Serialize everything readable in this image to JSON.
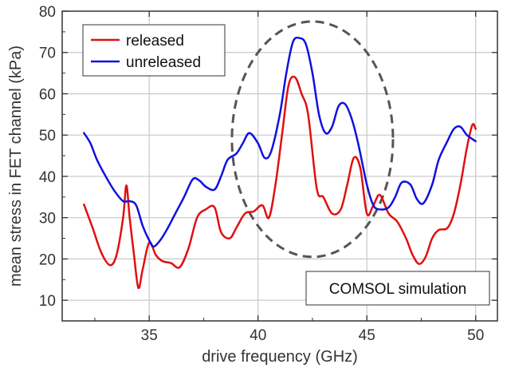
{
  "chart_data": {
    "type": "line",
    "xlabel": "drive frequency (GHz)",
    "ylabel": "mean stress in FET channel (kPa)",
    "xlim": [
      31,
      51
    ],
    "ylim": [
      5,
      80
    ],
    "xticks": [
      35,
      40,
      45,
      50
    ],
    "yticks": [
      10,
      20,
      30,
      40,
      50,
      60,
      70,
      80
    ],
    "grid": true,
    "legend_position": "top-left",
    "annotation": "COMSOL simulation",
    "series": [
      {
        "name": "released",
        "color": "#e01010",
        "x": [
          32.0,
          32.4,
          32.8,
          33.2,
          33.5,
          33.8,
          33.95,
          34.1,
          34.3,
          34.5,
          34.7,
          35.0,
          35.3,
          35.6,
          36.0,
          36.4,
          36.8,
          37.2,
          37.6,
          38.0,
          38.3,
          38.7,
          39.0,
          39.4,
          39.8,
          40.2,
          40.5,
          40.8,
          41.1,
          41.4,
          41.7,
          42.0,
          42.3,
          42.7,
          43.0,
          43.4,
          43.8,
          44.1,
          44.4,
          44.7,
          45.0,
          45.3,
          45.6,
          46.0,
          46.4,
          46.8,
          47.1,
          47.4,
          47.7,
          48.0,
          48.3,
          48.7,
          49.0,
          49.3,
          49.6,
          49.85,
          50.0
        ],
        "values": [
          33.2,
          27.5,
          21.5,
          18.5,
          21.0,
          30.0,
          37.8,
          30.0,
          21.0,
          13.0,
          17.5,
          24.0,
          21.0,
          19.5,
          19.0,
          18.0,
          22.5,
          30.0,
          32.0,
          32.5,
          26.5,
          25.0,
          27.5,
          31.0,
          31.5,
          33.0,
          30.0,
          38.0,
          50.0,
          62.0,
          64.0,
          60.0,
          55.0,
          37.0,
          35.0,
          31.0,
          32.0,
          38.0,
          44.5,
          42.0,
          31.0,
          33.0,
          35.5,
          31.0,
          29.0,
          25.0,
          21.0,
          18.8,
          20.5,
          25.0,
          27.0,
          27.5,
          31.0,
          38.0,
          47.0,
          52.5,
          51.5
        ]
      },
      {
        "name": "unreleased",
        "color": "#1010e0",
        "x": [
          32.0,
          32.3,
          32.6,
          33.0,
          33.4,
          33.8,
          34.1,
          34.4,
          34.7,
          35.0,
          35.2,
          35.5,
          35.8,
          36.2,
          36.6,
          37.0,
          37.3,
          37.6,
          38.0,
          38.3,
          38.6,
          39.0,
          39.3,
          39.6,
          40.0,
          40.3,
          40.6,
          41.0,
          41.3,
          41.6,
          41.9,
          42.2,
          42.5,
          42.8,
          43.1,
          43.4,
          43.7,
          44.0,
          44.3,
          44.6,
          45.0,
          45.3,
          45.6,
          46.0,
          46.3,
          46.6,
          47.0,
          47.3,
          47.6,
          48.0,
          48.3,
          48.7,
          49.0,
          49.3,
          49.6,
          50.0
        ],
        "values": [
          50.5,
          48.0,
          44.0,
          40.0,
          36.5,
          34.0,
          34.0,
          33.0,
          28.0,
          24.5,
          23.0,
          24.5,
          27.0,
          31.0,
          35.0,
          39.3,
          39.0,
          37.5,
          36.8,
          40.0,
          44.0,
          45.5,
          48.0,
          50.5,
          48.0,
          44.5,
          46.0,
          55.0,
          65.0,
          72.5,
          73.5,
          72.0,
          65.0,
          55.0,
          50.5,
          52.0,
          57.0,
          57.5,
          54.0,
          48.0,
          38.0,
          33.0,
          32.0,
          32.5,
          35.0,
          38.5,
          38.0,
          34.5,
          33.5,
          38.0,
          44.0,
          48.5,
          51.5,
          52.0,
          50.0,
          48.5
        ]
      }
    ],
    "ellipse": {
      "center_x": 42.5,
      "center_y": 49.0,
      "radius_x": 3.7,
      "radius_y": 28.5,
      "color": "#555555",
      "style": "dashed"
    }
  }
}
